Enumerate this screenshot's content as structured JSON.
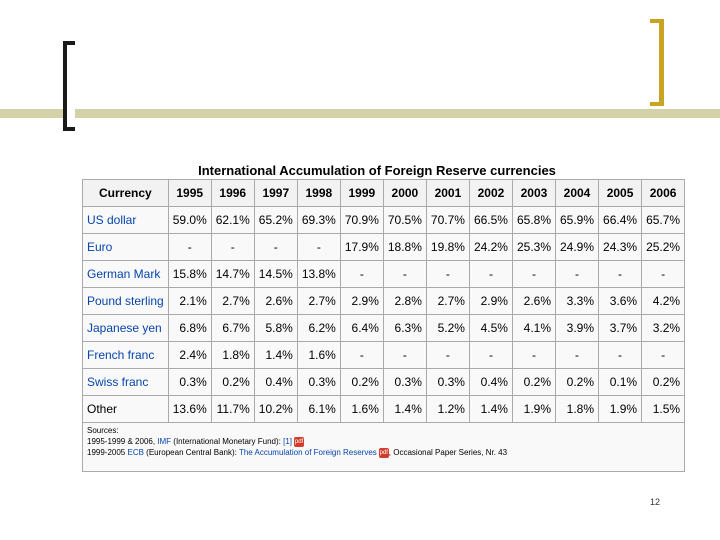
{
  "title": "International Accumulation of Foreign Reserve currencies",
  "header": [
    "Currency",
    "1995",
    "1996",
    "1997",
    "1998",
    "1999",
    "2000",
    "2001",
    "2002",
    "2003",
    "2004",
    "2005",
    "2006"
  ],
  "rows": [
    {
      "currency": "US dollar",
      "link": true,
      "values": [
        "59.0%",
        "62.1%",
        "65.2%",
        "69.3%",
        "70.9%",
        "70.5%",
        "70.7%",
        "66.5%",
        "65.8%",
        "65.9%",
        "66.4%",
        "65.7%"
      ]
    },
    {
      "currency": "Euro",
      "link": true,
      "values": [
        "-",
        "-",
        "-",
        "-",
        "17.9%",
        "18.8%",
        "19.8%",
        "24.2%",
        "25.3%",
        "24.9%",
        "24.3%",
        "25.2%"
      ]
    },
    {
      "currency": "German Mark",
      "link": true,
      "values": [
        "15.8%",
        "14.7%",
        "14.5%",
        "13.8%",
        "-",
        "-",
        "-",
        "-",
        "-",
        "-",
        "-",
        "-"
      ]
    },
    {
      "currency": "Pound sterling",
      "link": true,
      "values": [
        "2.1%",
        "2.7%",
        "2.6%",
        "2.7%",
        "2.9%",
        "2.8%",
        "2.7%",
        "2.9%",
        "2.6%",
        "3.3%",
        "3.6%",
        "4.2%"
      ]
    },
    {
      "currency": "Japanese yen",
      "link": true,
      "values": [
        "6.8%",
        "6.7%",
        "5.8%",
        "6.2%",
        "6.4%",
        "6.3%",
        "5.2%",
        "4.5%",
        "4.1%",
        "3.9%",
        "3.7%",
        "3.2%"
      ]
    },
    {
      "currency": "French franc",
      "link": true,
      "values": [
        "2.4%",
        "1.8%",
        "1.4%",
        "1.6%",
        "-",
        "-",
        "-",
        "-",
        "-",
        "-",
        "-",
        "-"
      ]
    },
    {
      "currency": "Swiss franc",
      "link": true,
      "values": [
        "0.3%",
        "0.2%",
        "0.4%",
        "0.3%",
        "0.2%",
        "0.3%",
        "0.3%",
        "0.4%",
        "0.2%",
        "0.2%",
        "0.1%",
        "0.2%"
      ]
    },
    {
      "currency": "Other",
      "link": false,
      "values": [
        "13.6%",
        "11.7%",
        "10.2%",
        "6.1%",
        "1.6%",
        "1.4%",
        "1.2%",
        "1.4%",
        "1.9%",
        "1.8%",
        "1.9%",
        "1.5%"
      ]
    }
  ],
  "sources": {
    "heading": "Sources:",
    "line1": {
      "prefix": "1995-1999 & 2006, ",
      "org": "IMF",
      "desc": " (International Monetary Fund): ",
      "ref": "[1]"
    },
    "line2": {
      "prefix": "1999-2005 ",
      "org": "ECB",
      "desc": " (European Central Bank): ",
      "title": "The Accumulation of Foreign Reserves",
      "suffix": ", Occasional Paper Series, Nr. 43"
    }
  },
  "slide_number": "12",
  "colors": {
    "accent_bar": "#d3d1a6",
    "bracket_gold": "#c9a322",
    "link": "#0645ad"
  }
}
